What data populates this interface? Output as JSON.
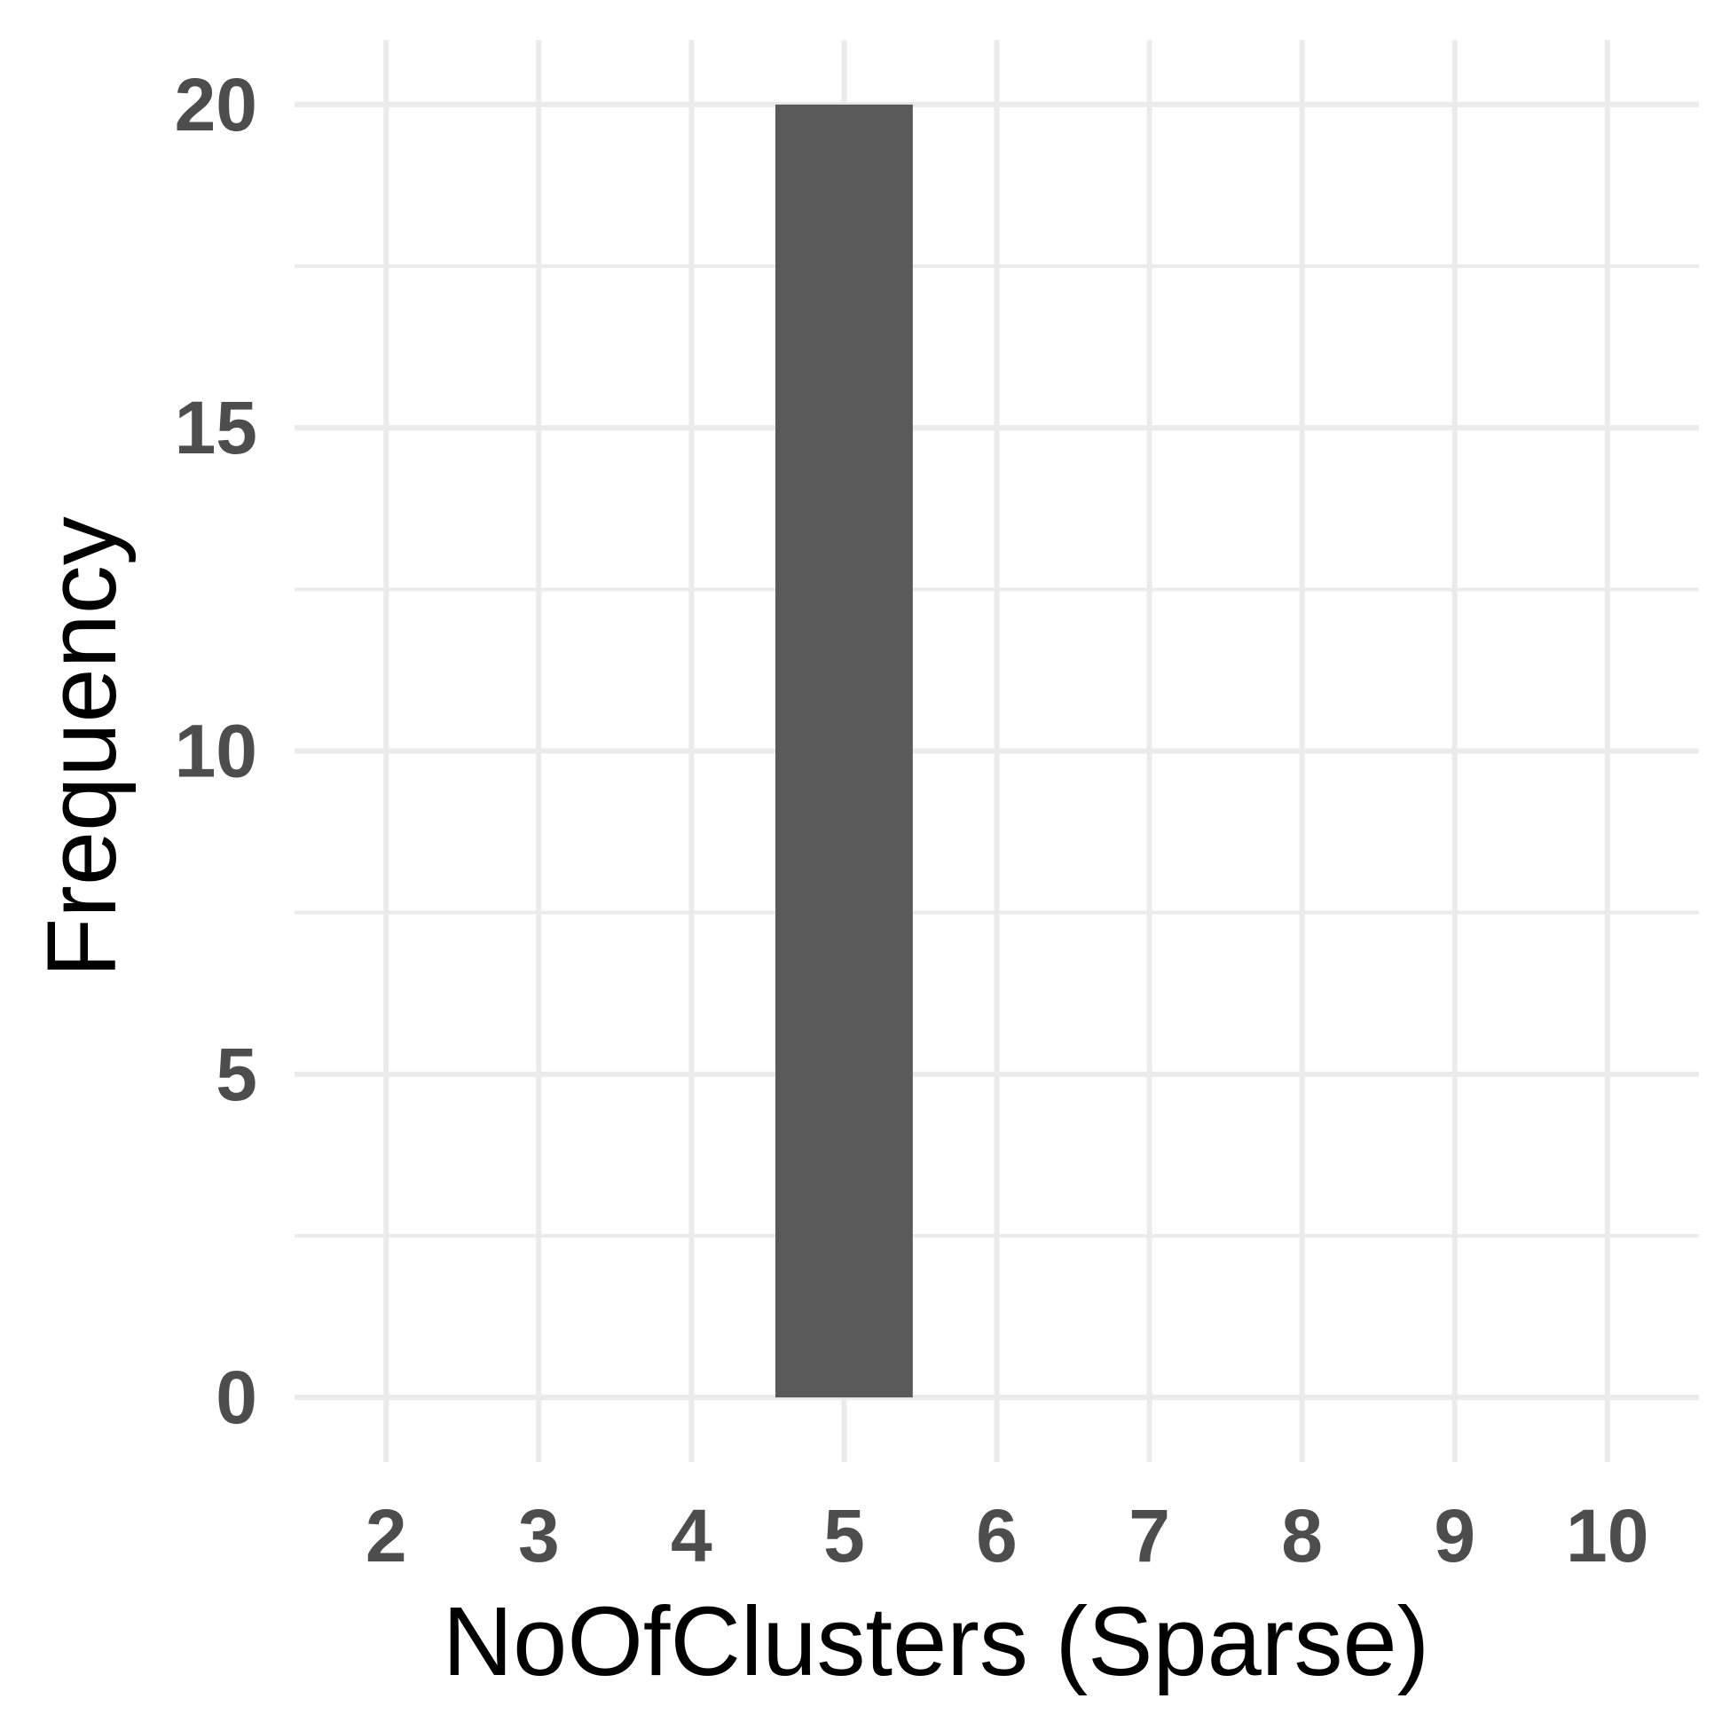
{
  "chart_data": {
    "type": "bar",
    "xlabel": "NoOfClusters (Sparse)",
    "ylabel": "Frequency",
    "x_ticks": [
      2,
      3,
      4,
      5,
      6,
      7,
      8,
      9,
      10
    ],
    "y_ticks": [
      0,
      5,
      10,
      15,
      20
    ],
    "xlim": [
      1.4,
      10.6
    ],
    "ylim": [
      -1,
      21
    ],
    "bars": [
      {
        "x": 5,
        "value": 20
      }
    ],
    "grid": true,
    "bar_color": "#595959"
  }
}
